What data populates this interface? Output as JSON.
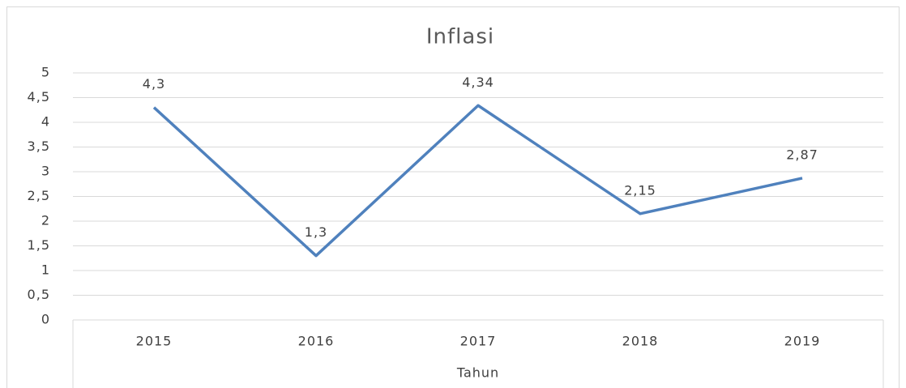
{
  "chart_data": {
    "type": "line",
    "title": "Inflasi",
    "x_label": "Tahun",
    "categories": [
      "2015",
      "2016",
      "2017",
      "2018",
      "2019"
    ],
    "values": [
      4.3,
      1.3,
      4.34,
      2.15,
      2.87
    ],
    "value_labels": [
      "4,3",
      "1,3",
      "4,34",
      "2,15",
      "2,87"
    ],
    "color": "#4f81bd",
    "ylim": [
      0,
      5
    ],
    "yticks": [
      0,
      {
        "value": 0.5,
        "label": "0,5"
      },
      1,
      {
        "value": 1.5,
        "label": "1,5"
      },
      2,
      {
        "value": 2.5,
        "label": "2,5"
      },
      3,
      {
        "value": 3.5,
        "label": "3,5"
      },
      4,
      {
        "value": 4.5,
        "label": "4,5"
      },
      5
    ],
    "grid": true
  }
}
